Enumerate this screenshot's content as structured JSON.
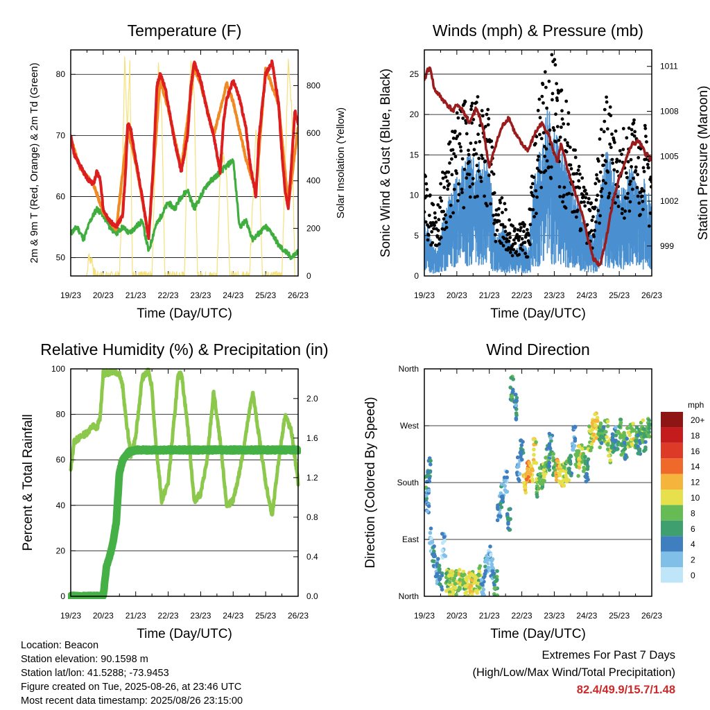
{
  "colors": {
    "temp2m": "#dd1e1e",
    "temp9m": "#f08a24",
    "dewpoint": "#3fae3f",
    "solar": "#f5e07a",
    "gust": "#000000",
    "wind": "#4a90d0",
    "pressure": "#9a1c1c",
    "rh": "#8cc84b",
    "rain": "#45b045",
    "speed_scale": [
      "#bfe6f8",
      "#7fbfe8",
      "#3f7fc0",
      "#3f9f6f",
      "#66bb55",
      "#e5e04c",
      "#f5b53c",
      "#ef6a2a",
      "#dd3a28",
      "#c41c1c",
      "#8f1414"
    ]
  },
  "info": {
    "location": "Location: Beacon",
    "elevation": "Station elevation: 90.1598 m",
    "latlon": "Station lat/lon: 41.5288; -73.9453",
    "created": "Figure created on Tue, 2025-08-26, at 23:46 UTC",
    "recent": "Most recent data timestamp: 2025/08/26 23:15:00"
  },
  "extremes": {
    "line1": "Extremes For Past 7 Days",
    "line2": "(High/Low/Max Wind/Total Precipitation)",
    "values": "82.4/49.9/15.7/1.48"
  },
  "chart_data": [
    {
      "type": "line",
      "title": "Temperature (F)",
      "xlabel": "Time (Day/UTC)",
      "ylabel": "2m & 9m T (Red, Orange) & 2m Td (Green)",
      "y2label": "Solar Insolation (Yellow)",
      "x_ticks": [
        "19/23",
        "20/23",
        "21/23",
        "22/23",
        "23/23",
        "24/23",
        "25/23",
        "26/23"
      ],
      "y_ticks": [
        50,
        60,
        70,
        80
      ],
      "y2_ticks": [
        0,
        200,
        400,
        600,
        800
      ],
      "ylim": [
        47,
        84
      ],
      "y2lim": [
        0,
        950
      ],
      "grid": true,
      "series": [
        {
          "name": "2m T",
          "x": [
            0,
            0.1,
            0.3,
            0.5,
            0.7,
            0.8,
            0.9,
            1.0,
            1.2,
            1.4,
            1.5,
            1.6,
            1.7,
            1.75,
            1.85,
            2.0,
            2.2,
            2.4,
            2.55,
            2.65,
            2.75,
            2.9,
            3.0,
            3.2,
            3.4,
            3.6,
            3.7,
            3.8,
            4.0,
            4.2,
            4.4,
            4.6,
            4.7,
            4.8,
            5.0,
            5.2,
            5.4,
            5.5,
            5.6,
            5.7,
            5.8,
            6.0,
            6.2,
            6.4,
            6.5,
            6.6,
            6.7,
            6.8,
            6.9,
            7.0
          ],
          "y": [
            70,
            67,
            65,
            63,
            62,
            64,
            63,
            58,
            56,
            55,
            56,
            57,
            65,
            72,
            71,
            66,
            60,
            53,
            66,
            78,
            80,
            78,
            75,
            69,
            64,
            70,
            78,
            82,
            79,
            74,
            70,
            64,
            72,
            76,
            79,
            76,
            71,
            66,
            63,
            60,
            70,
            80,
            82,
            75,
            67,
            61,
            58,
            66,
            74,
            72
          ]
        },
        {
          "name": "9m T",
          "x": [
            0,
            0.3,
            0.7,
            1.0,
            1.4,
            1.75,
            2.0,
            2.4,
            2.75,
            3.0,
            3.4,
            3.8,
            4.0,
            4.4,
            4.8,
            5.0,
            5.4,
            5.7,
            6.0,
            6.4,
            6.7,
            7.0
          ],
          "y": [
            69.5,
            64.5,
            62,
            57.5,
            54.5,
            71,
            65.5,
            53.5,
            79,
            74.5,
            64.5,
            81,
            78.5,
            70,
            78.5,
            75.5,
            66,
            61,
            81,
            75,
            58.5,
            71.5
          ]
        },
        {
          "name": "2m Td",
          "x": [
            0,
            0.2,
            0.4,
            0.6,
            0.8,
            1.0,
            1.2,
            1.4,
            1.6,
            1.8,
            2.0,
            2.2,
            2.4,
            2.6,
            2.8,
            3.0,
            3.2,
            3.4,
            3.6,
            3.8,
            4.0,
            4.2,
            4.4,
            4.6,
            4.8,
            5.0,
            5.2,
            5.4,
            5.6,
            5.8,
            6.0,
            6.2,
            6.4,
            6.6,
            6.8,
            7.0
          ],
          "y": [
            54,
            55,
            53,
            56,
            58,
            57,
            55,
            54,
            55,
            54,
            55,
            56,
            51,
            55,
            57,
            59,
            58,
            60,
            61,
            58,
            60,
            62,
            63,
            64,
            65,
            66,
            55,
            56,
            53,
            54,
            55,
            54,
            52,
            51,
            50,
            51
          ]
        },
        {
          "name": "Solar Insolation",
          "axis": "y2",
          "x": [
            0.5,
            0.55,
            0.6,
            0.65,
            0.7,
            0.8,
            1.5,
            1.58,
            1.66,
            1.74,
            1.82,
            1.9,
            2.5,
            2.6,
            2.7,
            2.8,
            2.9,
            3.5,
            3.6,
            3.7,
            3.8,
            3.9,
            4.5,
            4.6,
            4.7,
            4.8,
            4.9,
            5.5,
            5.6,
            5.7,
            5.8,
            5.9,
            6.5,
            6.6,
            6.7,
            6.8,
            6.9
          ],
          "y": [
            0,
            90,
            60,
            80,
            20,
            0,
            0,
            350,
            920,
            620,
            900,
            0,
            0,
            500,
            880,
            700,
            0,
            0,
            650,
            900,
            780,
            0,
            0,
            450,
            500,
            420,
            0,
            0,
            300,
            600,
            500,
            0,
            0,
            450,
            920,
            700,
            0
          ]
        }
      ]
    },
    {
      "type": "line",
      "title": "Winds (mph) & Pressure (mb)",
      "xlabel": "Time (Day/UTC)",
      "ylabel": "Sonic Wind & Gust (Blue, Black)",
      "y2label": "Station Pressure (Maroon)",
      "x_ticks": [
        "19/23",
        "20/23",
        "21/23",
        "22/23",
        "23/23",
        "24/23",
        "25/23",
        "26/23"
      ],
      "y_ticks": [
        0,
        5,
        10,
        15,
        20,
        25
      ],
      "y2_ticks": [
        999,
        1002,
        1005,
        1008,
        1011
      ],
      "ylim": [
        0,
        28
      ],
      "y2lim": [
        997,
        1012.1
      ],
      "grid": true,
      "series": [
        {
          "name": "Sonic Wind",
          "x": [
            0,
            0.2,
            0.4,
            0.6,
            0.8,
            1.0,
            1.2,
            1.4,
            1.6,
            1.8,
            2.0,
            2.2,
            2.4,
            2.6,
            2.8,
            3.0,
            3.2,
            3.4,
            3.6,
            3.8,
            4.0,
            4.2,
            4.4,
            4.6,
            4.8,
            5.0,
            5.2,
            5.4,
            5.6,
            5.8,
            6.0,
            6.2,
            6.4,
            6.6,
            6.8,
            7.0
          ],
          "y": [
            5,
            3,
            2,
            5,
            7,
            8,
            9,
            10,
            9,
            10,
            9,
            3,
            4,
            3,
            2,
            3,
            2,
            8,
            11,
            14,
            12,
            10,
            9,
            7,
            6,
            4,
            3,
            7,
            10,
            9,
            7,
            8,
            9,
            7,
            8,
            6
          ]
        },
        {
          "name": "Gust",
          "x": [
            0,
            0.2,
            0.4,
            0.6,
            0.8,
            1.0,
            1.2,
            1.4,
            1.6,
            1.8,
            2.0,
            2.2,
            2.4,
            2.6,
            2.8,
            3.0,
            3.2,
            3.4,
            3.6,
            3.8,
            4.0,
            4.2,
            4.4,
            4.6,
            4.8,
            5.0,
            5.2,
            5.4,
            5.6,
            5.8,
            6.0,
            6.2,
            6.4,
            6.6,
            6.8,
            7.0
          ],
          "y": [
            9,
            7,
            6,
            10,
            12,
            14,
            15,
            16,
            15,
            17,
            15,
            6,
            7,
            5,
            4,
            5,
            4,
            13,
            17,
            22,
            19,
            16,
            15,
            12,
            10,
            7,
            6,
            12,
            16,
            14,
            12,
            13,
            15,
            12,
            13,
            10
          ]
        },
        {
          "name": "Station Pressure",
          "axis": "y2",
          "x": [
            0,
            0.1,
            0.2,
            0.3,
            0.6,
            0.9,
            1.0,
            1.2,
            1.4,
            1.6,
            1.8,
            2.0,
            2.2,
            2.4,
            2.6,
            2.8,
            3.0,
            3.2,
            3.4,
            3.6,
            3.8,
            4.0,
            4.1,
            4.2,
            4.4,
            4.6,
            4.8,
            5.0,
            5.2,
            5.4,
            5.6,
            5.8,
            6.0,
            6.2,
            6.4,
            6.6,
            6.8,
            7.0
          ],
          "y": [
            1010,
            1010.8,
            1010.8,
            1009.5,
            1008.7,
            1008,
            1008.5,
            1008,
            1007.2,
            1008.2,
            1007,
            1004.2,
            1005.8,
            1007,
            1007.6,
            1006.5,
            1005.8,
            1005.4,
            1006.5,
            1007.2,
            1006.6,
            1005.2,
            1004.5,
            1005.8,
            1004.2,
            1002.8,
            1001.6,
            999.8,
            998.2,
            997.7,
            999.5,
            1002,
            1003.5,
            1004.8,
            1005.8,
            1006,
            1005.2,
            1004.8
          ]
        }
      ]
    },
    {
      "type": "line",
      "title": "Relative Humidity (%) & Precipitation (in)",
      "xlabel": "Time (Day/UTC)",
      "ylabel": "Percent & Total Rainfall",
      "x_ticks": [
        "19/23",
        "20/23",
        "21/23",
        "22/23",
        "23/23",
        "24/23",
        "25/23",
        "26/23"
      ],
      "y_ticks": [
        0,
        20,
        40,
        60,
        80,
        100
      ],
      "y2_ticks": [
        "0.0",
        "0.4",
        "0.8",
        "1.2",
        "1.6",
        "2.0"
      ],
      "ylim": [
        0,
        100
      ],
      "y2lim": [
        0,
        2.3
      ],
      "grid": true,
      "series": [
        {
          "name": "Relative Humidity",
          "x": [
            0,
            0.1,
            0.3,
            0.5,
            0.7,
            0.8,
            0.9,
            1.0,
            1.1,
            1.3,
            1.5,
            1.6,
            1.7,
            1.85,
            2.0,
            2.2,
            2.4,
            2.5,
            2.6,
            2.8,
            3.0,
            3.2,
            3.3,
            3.4,
            3.6,
            3.8,
            4.0,
            4.2,
            4.4,
            4.6,
            4.8,
            5.0,
            5.2,
            5.4,
            5.6,
            5.8,
            6.0,
            6.2,
            6.4,
            6.6,
            6.8,
            7.0
          ],
          "y": [
            55,
            68,
            70,
            72,
            75,
            74,
            78,
            98,
            98,
            99,
            98,
            92,
            78,
            62,
            70,
            96,
            99,
            92,
            70,
            42,
            50,
            80,
            96,
            99,
            75,
            42,
            45,
            60,
            90,
            68,
            40,
            42,
            55,
            72,
            90,
            70,
            50,
            35,
            60,
            80,
            72,
            50
          ]
        },
        {
          "name": "Total Rainfall",
          "axis": "y2",
          "x": [
            0,
            0.5,
            1.0,
            1.1,
            1.2,
            1.3,
            1.4,
            1.5,
            1.6,
            1.8,
            2.0,
            7.0
          ],
          "y": [
            0,
            0,
            0,
            0.3,
            0.4,
            0.55,
            0.75,
            1.25,
            1.38,
            1.46,
            1.48,
            1.48
          ]
        }
      ]
    },
    {
      "type": "scatter",
      "title": "Wind Direction",
      "xlabel": "Time (Day/UTC)",
      "ylabel": "Direction (Colored By Speed)",
      "x_ticks": [
        "19/23",
        "20/23",
        "21/23",
        "22/23",
        "23/23",
        "24/23",
        "25/23",
        "26/23"
      ],
      "y_ticks": [
        "North",
        "East",
        "South",
        "West",
        "North"
      ],
      "ylim": [
        0,
        360
      ],
      "colorbar_title": "mph",
      "colorbar_labels": [
        "20+",
        "18",
        "16",
        "14",
        "12",
        "10",
        "8",
        "6",
        "4",
        "2",
        "0"
      ],
      "grid": true,
      "x": [
        0.05,
        0.1,
        0.15,
        0.2,
        0.3,
        0.4,
        0.5,
        0.6,
        0.7,
        0.8,
        0.9,
        1.0,
        1.1,
        1.2,
        1.3,
        1.4,
        1.5,
        1.6,
        1.7,
        1.8,
        1.9,
        2.0,
        2.1,
        2.2,
        2.3,
        2.4,
        2.5,
        2.6,
        2.7,
        2.8,
        2.9,
        3.0,
        3.1,
        3.2,
        3.3,
        3.4,
        3.5,
        3.6,
        3.7,
        3.8,
        3.9,
        4.0,
        4.1,
        4.2,
        4.3,
        4.4,
        4.5,
        4.6,
        4.7,
        4.8,
        4.9,
        5.0,
        5.1,
        5.2,
        5.3,
        5.4,
        5.5,
        5.6,
        5.7,
        5.8,
        5.9,
        6.0,
        6.1,
        6.2,
        6.3,
        6.4,
        6.5,
        6.6,
        6.7,
        6.8,
        6.9
      ],
      "y": [
        170,
        150,
        200,
        90,
        60,
        40,
        30,
        80,
        25,
        20,
        18,
        22,
        25,
        20,
        18,
        20,
        22,
        25,
        30,
        15,
        45,
        60,
        40,
        20,
        140,
        160,
        180,
        120,
        330,
        300,
        200,
        230,
        180,
        200,
        190,
        230,
        175,
        190,
        200,
        220,
        240,
        210,
        200,
        190,
        195,
        200,
        210,
        250,
        210,
        220,
        215,
        200,
        250,
        260,
        270,
        255,
        250,
        260,
        230,
        240,
        250,
        260,
        240,
        235,
        255,
        255,
        250,
        245,
        260,
        250,
        265
      ],
      "speed": [
        6,
        3,
        5,
        2,
        4,
        3,
        5,
        2,
        8,
        9,
        10,
        9,
        10,
        8,
        9,
        11,
        10,
        9,
        8,
        3,
        4,
        2,
        3,
        6,
        3,
        4,
        2,
        5,
        6,
        4,
        3,
        5,
        11,
        13,
        12,
        10,
        8,
        7,
        9,
        6,
        4,
        7,
        12,
        11,
        9,
        8,
        5,
        3,
        7,
        10,
        8,
        5,
        9,
        11,
        10,
        7,
        6,
        8,
        9,
        5,
        4,
        7,
        8,
        6,
        9,
        10,
        7,
        5,
        8,
        6,
        7
      ]
    }
  ]
}
